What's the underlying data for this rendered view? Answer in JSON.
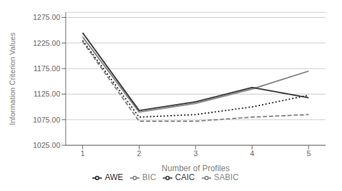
{
  "chart_data": {
    "type": "line",
    "xlabel": "Number of Profiles",
    "ylabel": "Information Criterion Values",
    "x": [
      1,
      2,
      3,
      4,
      5
    ],
    "series": [
      {
        "name": "BIC",
        "color": "#888888",
        "line_style": "solid",
        "values": [
          1237,
          1090,
          1107,
          1135,
          1170
        ]
      },
      {
        "name": "SABIC",
        "color": "#888888",
        "line_style": "dashed",
        "values": [
          1228,
          1072,
          1072,
          1080,
          1085
        ]
      },
      {
        "name": "CAIC",
        "color": "#404040",
        "line_style": "solid",
        "values": [
          1245,
          1093,
          1110,
          1138,
          1118
        ]
      },
      {
        "name": "AWE",
        "color": "#303030",
        "line_style": "dotted",
        "values": [
          1230,
          1080,
          1085,
          1100,
          1123
        ]
      }
    ],
    "xlim": [
      0.7,
      5.3
    ],
    "xticks": [
      1,
      2,
      3,
      4,
      5
    ],
    "ylim": [
      1025,
      1285
    ],
    "yticks": [
      {
        "value": 1025,
        "label": "1025.00"
      },
      {
        "value": 1075,
        "label": "1075.00"
      },
      {
        "value": 1125,
        "label": "1125.00"
      },
      {
        "value": 1175,
        "label": "1175.00"
      },
      {
        "value": 1225,
        "label": "1225.00"
      },
      {
        "value": 1275,
        "label": "1275.00"
      }
    ],
    "grid": true,
    "legend": "bottom"
  }
}
